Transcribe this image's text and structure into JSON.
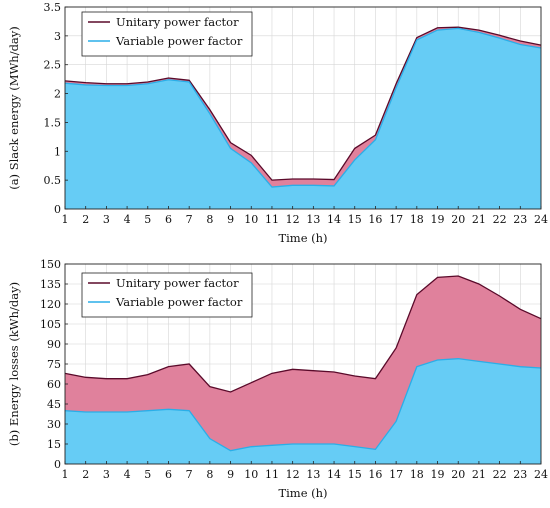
{
  "chart_data": [
    {
      "type": "area",
      "title": "",
      "xlabel": "Time (h)",
      "ylabel": "(a) Slack energy (MWh/day)",
      "x": [
        1,
        2,
        3,
        4,
        5,
        6,
        7,
        8,
        9,
        10,
        11,
        12,
        13,
        14,
        15,
        16,
        17,
        18,
        19,
        20,
        21,
        22,
        23,
        24
      ],
      "xlim": [
        1,
        24
      ],
      "ylim": [
        0,
        3.5
      ],
      "yticks": [
        0,
        0.5,
        1,
        1.5,
        2,
        2.5,
        3,
        3.5
      ],
      "grid": true,
      "legend_position": "top-left",
      "series": [
        {
          "name": "Unitary power factor",
          "color": "#5a0a2a",
          "fill": "#e0819c",
          "values": [
            2.22,
            2.19,
            2.17,
            2.17,
            2.2,
            2.27,
            2.23,
            1.72,
            1.15,
            0.93,
            0.5,
            0.52,
            0.52,
            0.51,
            1.05,
            1.28,
            2.17,
            2.97,
            3.14,
            3.15,
            3.1,
            3.01,
            2.91,
            2.84
          ]
        },
        {
          "name": "Variable power factor",
          "color": "#2aaee8",
          "fill": "#66ccf5",
          "values": [
            2.18,
            2.15,
            2.14,
            2.14,
            2.17,
            2.24,
            2.2,
            1.65,
            1.05,
            0.8,
            0.38,
            0.41,
            0.41,
            0.4,
            0.85,
            1.2,
            2.1,
            2.93,
            3.1,
            3.13,
            3.06,
            2.96,
            2.85,
            2.79
          ]
        }
      ]
    },
    {
      "type": "area",
      "title": "",
      "xlabel": "Time (h)",
      "ylabel": "(b) Energy losses (kWh/day)",
      "x": [
        1,
        2,
        3,
        4,
        5,
        6,
        7,
        8,
        9,
        10,
        11,
        12,
        13,
        14,
        15,
        16,
        17,
        18,
        19,
        20,
        21,
        22,
        23,
        24
      ],
      "xlim": [
        1,
        24
      ],
      "ylim": [
        0,
        150
      ],
      "yticks": [
        0,
        15,
        30,
        45,
        60,
        75,
        90,
        105,
        120,
        135,
        150
      ],
      "grid": true,
      "legend_position": "top-left",
      "series": [
        {
          "name": "Unitary power factor",
          "color": "#5a0a2a",
          "fill": "#e0819c",
          "values": [
            68,
            65,
            64,
            64,
            67,
            73,
            75,
            58,
            54,
            61,
            68,
            71,
            70,
            69,
            66,
            64,
            87,
            127,
            140,
            141,
            135,
            126,
            116,
            109
          ]
        },
        {
          "name": "Variable power factor",
          "color": "#2aaee8",
          "fill": "#66ccf5",
          "values": [
            40,
            39,
            39,
            39,
            40,
            41,
            40,
            19,
            10,
            13,
            14,
            15,
            15,
            15,
            13,
            11,
            32,
            73,
            78,
            79,
            77,
            75,
            73,
            72
          ]
        }
      ]
    }
  ]
}
